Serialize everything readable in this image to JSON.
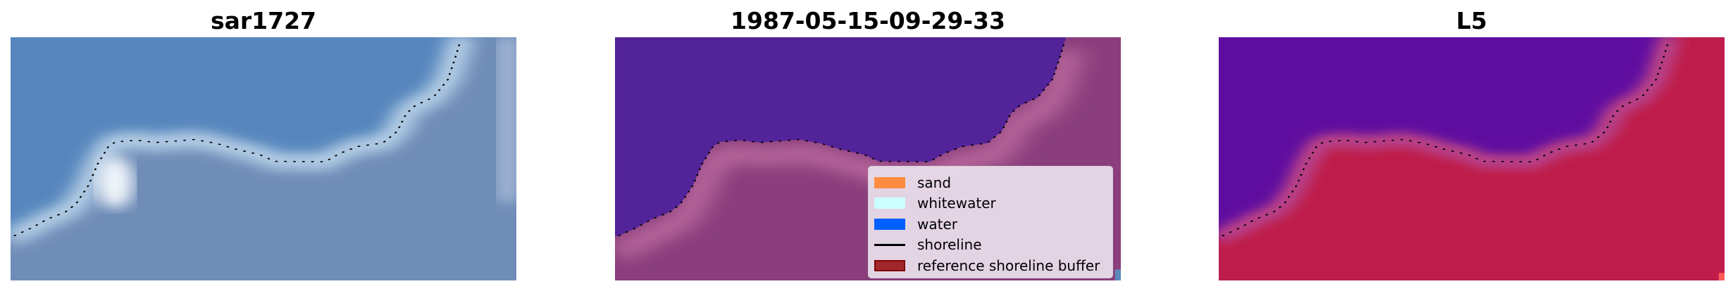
{
  "panels": [
    {
      "title": "sar1727"
    },
    {
      "title": "1987-05-15-09-29-33"
    },
    {
      "title": "L5"
    }
  ],
  "legend": {
    "placement": "lower-right",
    "items": [
      {
        "label": "sand",
        "color": "#ff8c40",
        "kind": "patch"
      },
      {
        "label": "whitewater",
        "color": "#ccffff",
        "kind": "patch"
      },
      {
        "label": "water",
        "color": "#0060ff",
        "kind": "patch"
      },
      {
        "label": "shoreline",
        "color": "#000000",
        "kind": "line"
      },
      {
        "label": "reference shoreline buffer",
        "color": "#a0282c",
        "kind": "patch"
      }
    ]
  },
  "colors": {
    "sar_water": "#5585bd",
    "sar_land": "#6e8cb8",
    "class_water": "#53239a",
    "class_land": "#8c3f7e",
    "prob_water": "#5a0aa0",
    "prob_land": "#c01a48"
  }
}
